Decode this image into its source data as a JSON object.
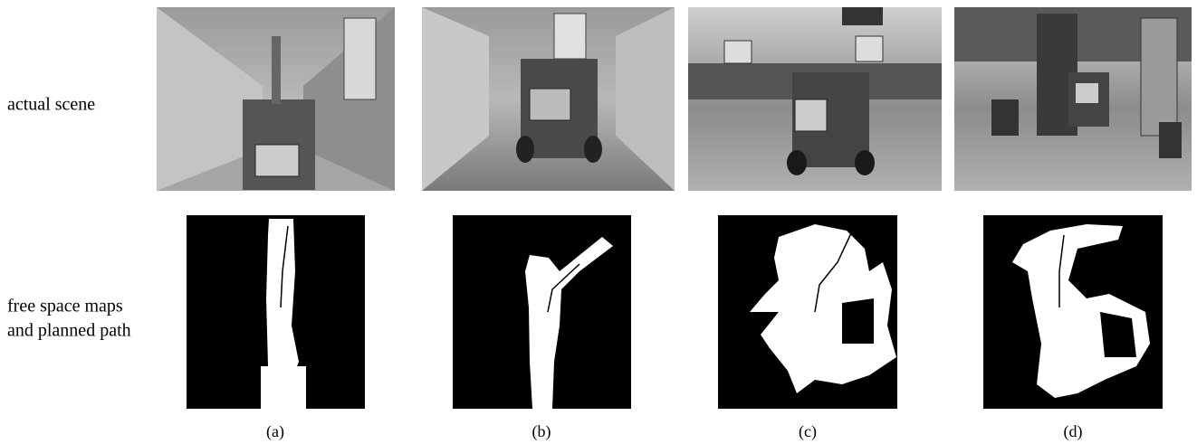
{
  "rows": [
    {
      "label_lines": [
        "actual scene"
      ]
    },
    {
      "label_lines": [
        "free space maps",
        "and planned path"
      ]
    }
  ],
  "captions": [
    "(a)",
    "(b)",
    "(c)",
    "(d)"
  ]
}
